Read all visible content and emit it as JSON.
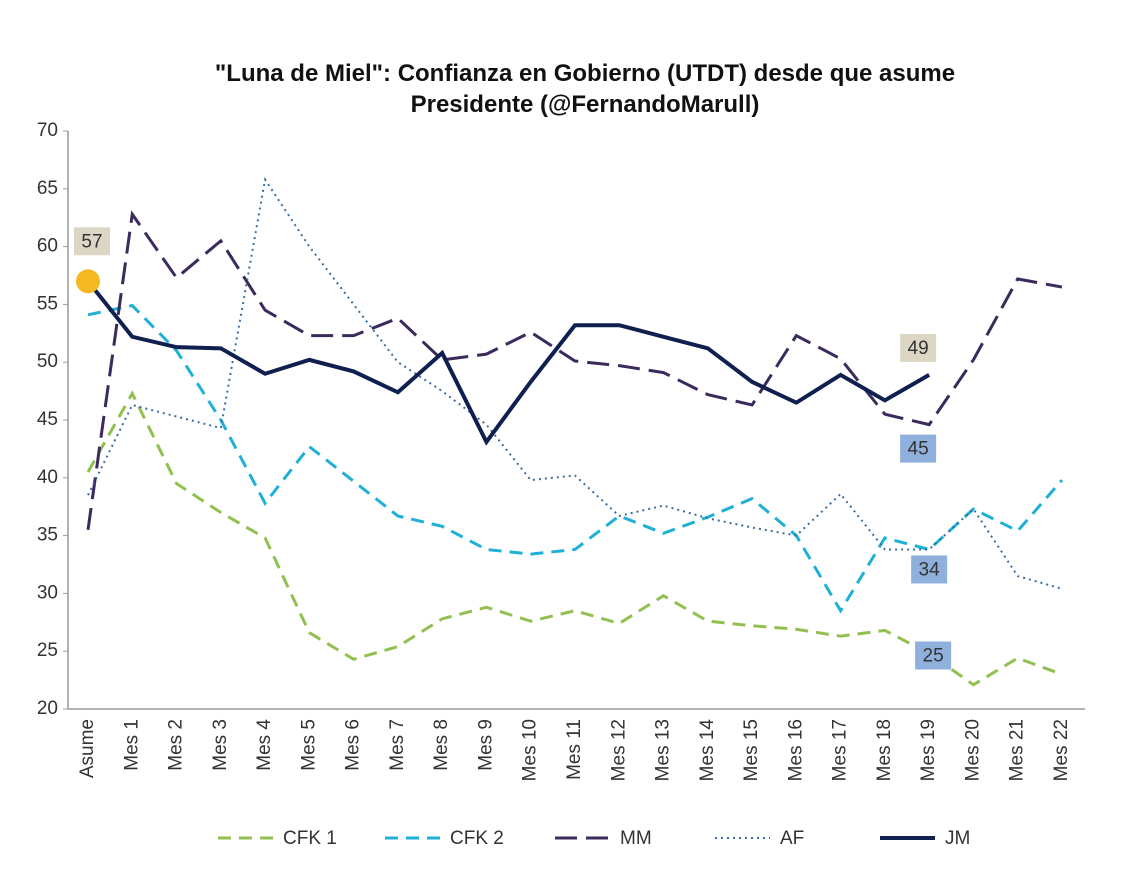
{
  "chart_data": {
    "type": "line",
    "title": "\"Luna de Miel\": Confianza en Gobierno (UTDT) desde que asume Presidente (@FernandoMarull)",
    "categories": [
      "Asume",
      "Mes 1",
      "Mes 2",
      "Mes 3",
      "Mes 4",
      "Mes 5",
      "Mes 6",
      "Mes 7",
      "Mes 8",
      "Mes 9",
      "Mes 10",
      "Mes 11",
      "Mes 12",
      "Mes 13",
      "Mes 14",
      "Mes 15",
      "Mes 16",
      "Mes 17",
      "Mes 18",
      "Mes 19",
      "Mes 20",
      "Mes 21",
      "Mes 22"
    ],
    "ylim": [
      20,
      70
    ],
    "yticks": [
      20,
      25,
      30,
      35,
      40,
      45,
      50,
      55,
      60,
      65,
      70
    ],
    "grid": false,
    "legend": "bottom",
    "series": [
      {
        "name": "CFK 1",
        "color": "#92c050",
        "style": "dashed",
        "label_color": "#8fb0dc",
        "values": [
          40.5,
          47.3,
          39.5,
          37,
          34.8,
          26.6,
          24.3,
          25.4,
          27.8,
          28.8,
          27.6,
          28.5,
          27.4,
          29.8,
          27.6,
          27.2,
          26.9,
          26.3,
          26.8,
          24.8,
          22.1,
          24.4,
          23
        ],
        "value_labels": [
          null,
          null,
          null,
          null,
          null,
          null,
          null,
          null,
          null,
          null,
          null,
          null,
          null,
          null,
          null,
          null,
          null,
          null,
          null,
          "25",
          null,
          null,
          null
        ]
      },
      {
        "name": "CFK 2",
        "color": "#1fb0d8",
        "style": "dashed",
        "label_color": "#8fb0dc",
        "values": [
          54.1,
          54.9,
          51,
          45,
          37.8,
          42.7,
          39.7,
          36.7,
          35.8,
          33.8,
          33.4,
          33.8,
          36.7,
          35.2,
          36.6,
          38.2,
          35,
          28.5,
          34.8,
          33.8,
          37.3,
          35.4,
          39.8
        ],
        "value_labels": [
          null,
          null,
          null,
          null,
          null,
          null,
          null,
          null,
          null,
          null,
          null,
          null,
          null,
          null,
          null,
          null,
          null,
          null,
          null,
          "34",
          null,
          null,
          null
        ]
      },
      {
        "name": "MM",
        "color": "#3b2a5c",
        "style": "longdash",
        "label_color": "#8fb0dc",
        "values": [
          35.5,
          62.8,
          57.3,
          60.5,
          54.5,
          52.3,
          52.3,
          53.8,
          50.2,
          50.7,
          52.6,
          50.1,
          49.7,
          49.1,
          47.2,
          46.3,
          52.3,
          50.3,
          45.5,
          44.6,
          50.2,
          57.2,
          56.5
        ],
        "value_labels": [
          null,
          null,
          null,
          null,
          null,
          null,
          null,
          null,
          null,
          null,
          null,
          null,
          null,
          null,
          null,
          null,
          null,
          null,
          null,
          "45",
          null,
          null,
          null
        ]
      },
      {
        "name": "AF",
        "color": "#3a6ea0",
        "style": "dotted",
        "values": [
          38.5,
          46.3,
          45.3,
          44.3,
          65.8,
          60,
          55,
          50,
          47.5,
          44.6,
          39.8,
          40.2,
          36.7,
          37.6,
          36.5,
          35.7,
          35,
          38.6,
          33.8,
          33.8,
          37.3,
          31.5,
          30.4
        ]
      },
      {
        "name": "JM",
        "color": "#0f1f4f",
        "style": "solid",
        "label_color": "#dcd6c4",
        "marker_color": "#f5b820",
        "values": [
          57,
          52.2,
          51.3,
          51.2,
          49,
          50.2,
          49.2,
          47.4,
          50.8,
          43.1,
          48.3,
          53.2,
          53.2,
          52.2,
          51.2,
          48.3,
          46.5,
          48.9,
          46.7,
          48.9,
          null,
          null,
          null
        ],
        "value_labels": [
          "57",
          null,
          null,
          null,
          null,
          null,
          null,
          null,
          null,
          null,
          null,
          null,
          null,
          null,
          null,
          null,
          null,
          null,
          null,
          "49",
          null,
          null,
          null
        ]
      }
    ]
  }
}
